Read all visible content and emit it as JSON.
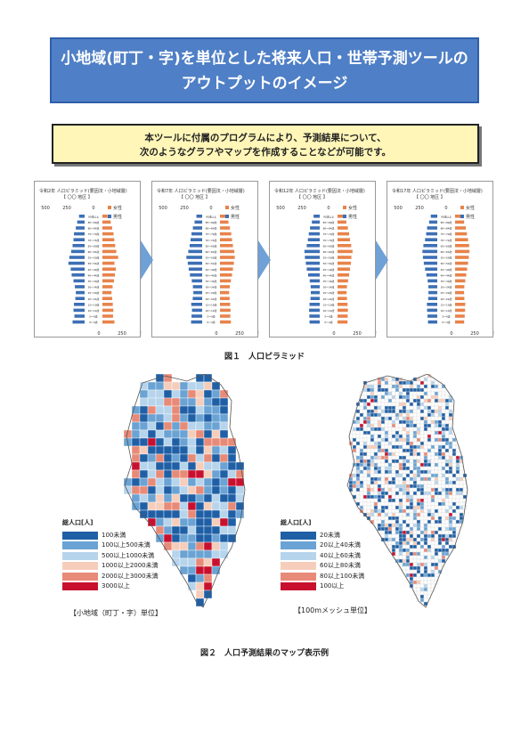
{
  "header": {
    "title_line1": "小地域(町丁・字)を単位とした将来人口・世帯予測ツールの",
    "title_line2": "アウトプットのイメージ"
  },
  "intro": {
    "line1": "本ツールに付属のプログラムにより、予測結果について、",
    "line2": "次のようなグラフやマップを作成することなどが可能です。"
  },
  "pyramids": [
    {
      "year": "令和2年",
      "title": "人口ピラミッド(要因法・小地域層)",
      "area": "【 〇〇 地区 】",
      "male": [
        130,
        110,
        120,
        115,
        100,
        95,
        105,
        120,
        140,
        150,
        175,
        165,
        145,
        130,
        120,
        115,
        95,
        80,
        60
      ],
      "female": [
        130,
        115,
        118,
        112,
        105,
        98,
        110,
        125,
        135,
        145,
        130,
        170,
        150,
        138,
        128,
        120,
        105,
        90,
        55
      ]
    },
    {
      "year": "令和7年",
      "title": "人口ピラミッド(要因法・小地域層)",
      "area": "【 〇〇 地区 】",
      "male": [
        120,
        115,
        110,
        118,
        102,
        95,
        100,
        112,
        132,
        145,
        155,
        170,
        150,
        135,
        125,
        115,
        100,
        82,
        62
      ],
      "female": [
        118,
        112,
        114,
        110,
        104,
        99,
        106,
        118,
        130,
        140,
        150,
        160,
        155,
        140,
        130,
        122,
        108,
        92,
        60
      ]
    },
    {
      "year": "令和12年",
      "title": "人口ピラミッド(要因法・小地域層)",
      "area": "【 〇〇 地区 】",
      "male": [
        110,
        112,
        115,
        110,
        100,
        96,
        98,
        108,
        125,
        140,
        150,
        160,
        165,
        140,
        128,
        118,
        105,
        85,
        66
      ],
      "female": [
        108,
        110,
        112,
        108,
        102,
        98,
        102,
        114,
        125,
        135,
        145,
        150,
        162,
        148,
        135,
        125,
        112,
        95,
        64
      ]
    },
    {
      "year": "令和17年",
      "title": "人口ピラミッド(要因法・小地域層)",
      "area": "【 〇〇 地区 】",
      "male": [
        100,
        105,
        110,
        112,
        98,
        95,
        96,
        104,
        118,
        132,
        145,
        155,
        160,
        150,
        132,
        120,
        110,
        88,
        70
      ],
      "female": [
        98,
        104,
        108,
        110,
        100,
        97,
        100,
        110,
        120,
        130,
        140,
        148,
        155,
        152,
        140,
        128,
        116,
        98,
        68
      ]
    }
  ],
  "pyramid_labels": {
    "female": "女性",
    "male": "男性",
    "top_ticks": [
      "500",
      "250",
      "0"
    ],
    "bottom_ticks": [
      "0",
      "250",
      "500"
    ],
    "ages": [
      "0～4歳",
      "5～9歳",
      "10～14歳",
      "15～19歳",
      "20～24歳",
      "25～29歳",
      "30～34歳",
      "35～39歳",
      "40～44歳",
      "45～49歳",
      "50～54歳",
      "55～59歳",
      "60～64歳",
      "65～69歳",
      "70～74歳",
      "75～79歳",
      "80～84歳",
      "85～89歳",
      "90歳以上"
    ]
  },
  "colors": {
    "male": "#3c6fb6",
    "female": "#e8834a",
    "title_bg": "#4f7fc6",
    "intro_bg": "#fff6b8",
    "arrow": "#6fa0d6",
    "choropleth": [
      "#1f5fa6",
      "#6aa3d4",
      "#b6d4ec",
      "#f6cdbb",
      "#e88a78",
      "#c8102e"
    ]
  },
  "figure1_caption": "図１　人口ピラミッド",
  "map_left": {
    "legend_title": "総人口[人]",
    "legend": [
      "100未満",
      "100以上500未満",
      "500以上1000未満",
      "1000以上2000未満",
      "2000以上3000未満",
      "3000以上"
    ],
    "caption": "【小地域（町丁・字）単位】"
  },
  "map_right": {
    "legend_title": "総人口[人]",
    "legend": [
      "20未満",
      "20以上40未満",
      "40以上60未満",
      "60以上80未満",
      "80以上100未満",
      "100以上"
    ],
    "caption": "【100mメッシュ単位】"
  },
  "figure2_caption": "図２　人口予測結果のマップ表示例"
}
